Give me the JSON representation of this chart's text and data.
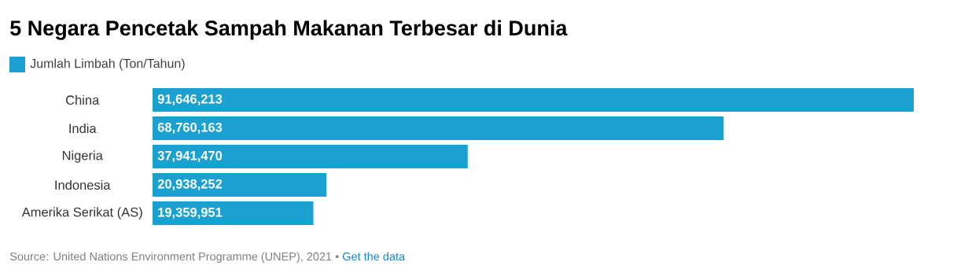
{
  "chart_data": {
    "type": "bar",
    "orientation": "horizontal",
    "title": "5 Negara Pencetak Sampah Makanan Terbesar di Dunia",
    "categories": [
      "China",
      "India",
      "Nigeria",
      "Indonesia",
      "Amerika Serikat (AS)"
    ],
    "series": [
      {
        "name": "Jumlah Limbah (Ton/Tahun)",
        "color": "#1aa1cf",
        "values": [
          91646213,
          68760163,
          37941470,
          20938252,
          19359951
        ],
        "value_labels": [
          "91,646,213",
          "68,760,163",
          "37,941,470",
          "20,938,252",
          "19,359,951"
        ]
      }
    ],
    "legend": "top left",
    "annotations": [
      "Source: United Nations Environment Programme (UNEP), 2021 •",
      "Get the data"
    ]
  }
}
